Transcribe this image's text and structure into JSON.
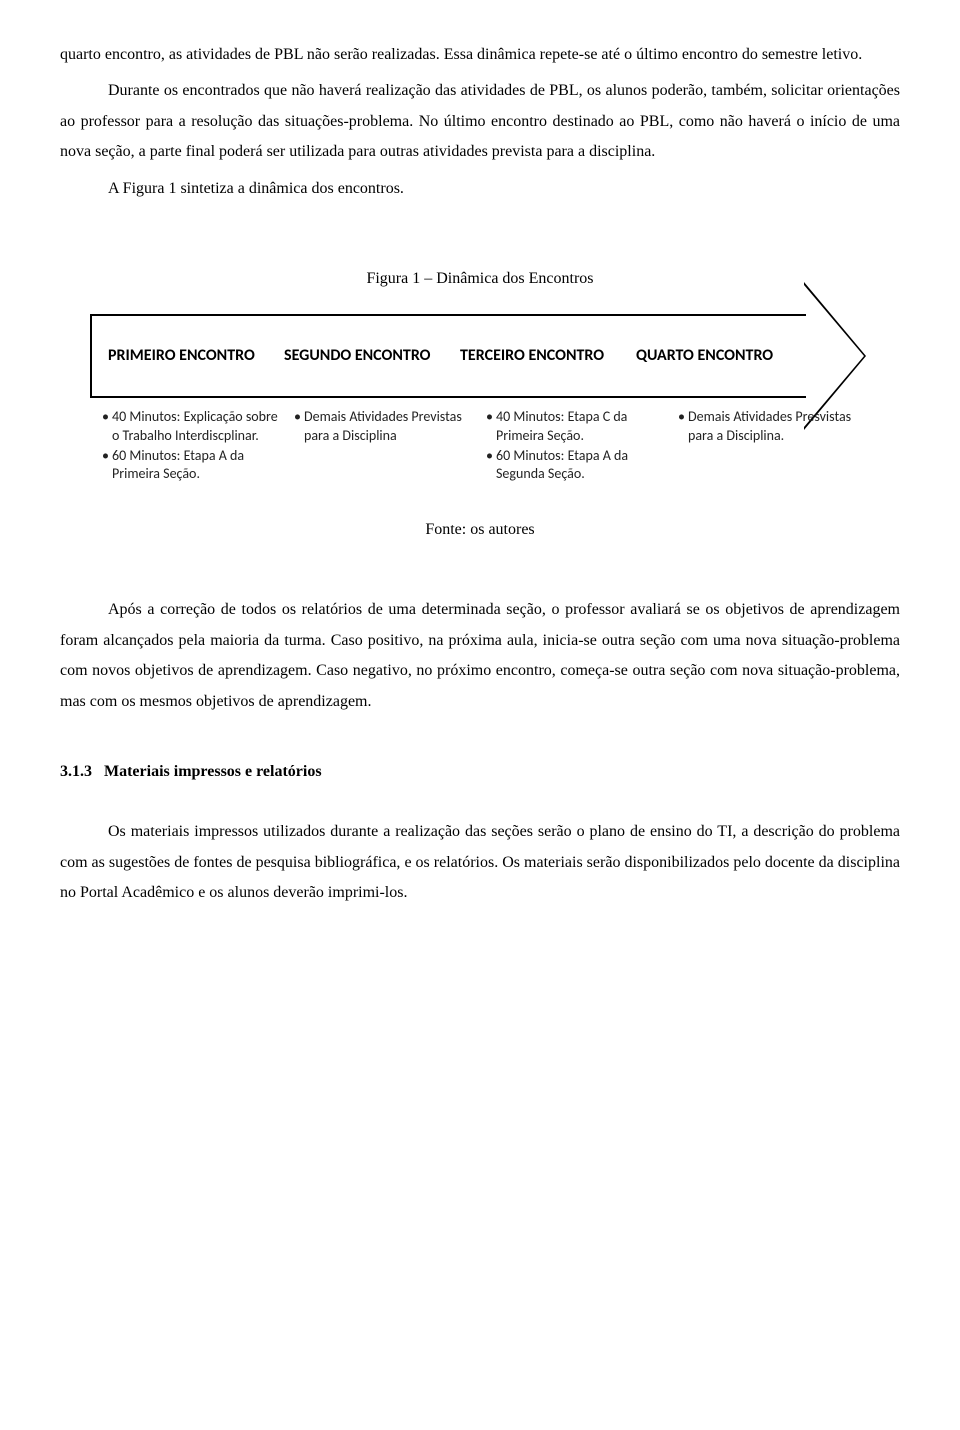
{
  "p1": "quarto encontro, as atividades de PBL não serão realizadas. Essa dinâmica repete-se até o último encontro do semestre letivo.",
  "p2": "Durante os encontrados que não haverá realização das atividades de PBL, os alunos poderão, também, solicitar orientações ao professor para a resolução das situações-problema. No último encontro destinado ao PBL, como não haverá o início de uma nova seção, a parte final poderá ser utilizada para outras atividades prevista para a disciplina.",
  "p3": "A Figura 1 sintetiza a dinâmica dos encontros.",
  "figcaption": "Figura 1 – Dinâmica dos Encontros",
  "figsource": "Fonte: os autores",
  "arrow": {
    "cols": [
      {
        "head": "PRIMEIRO ENCONTRO",
        "items": [
          "40 Minutos: Explicação sobre o Trabalho Interdiscplinar.",
          "60 Minutos: Etapa A da Primeira Seção."
        ]
      },
      {
        "head": "SEGUNDO ENCONTRO",
        "items": [
          "Demais Atividades Previstas para a Disciplina"
        ]
      },
      {
        "head": "TERCEIRO ENCONTRO",
        "items": [
          "40 Minutos: Etapa C da Primeira Seção.",
          "60 Minutos: Etapa A da Segunda Seção."
        ]
      },
      {
        "head": "QUARTO ENCONTRO",
        "items": [
          "Demais Atividades Presvistas para a Disciplina."
        ]
      }
    ]
  },
  "p4": "Após a correção de todos os relatórios de uma determinada seção, o professor avaliará se os objetivos de aprendizagem foram alcançados pela maioria da turma. Caso positivo, na próxima aula, inicia-se outra seção com uma nova situação-problema com novos objetivos de aprendizagem. Caso negativo, no próximo encontro, começa-se outra seção com nova situação-problema, mas com os mesmos objetivos de aprendizagem.",
  "secnum": "3.1.3",
  "sectitle": "Materiais impressos e relatórios",
  "p5": "Os materiais impressos utilizados durante a realização das seções serão o plano de ensino do TI, a descrição do problema com as sugestões de fontes de pesquisa bibliográfica, e os relatórios. Os materiais serão disponibilizados pelo docente da disciplina no Portal Acadêmico e os alunos deverão imprimi-los."
}
